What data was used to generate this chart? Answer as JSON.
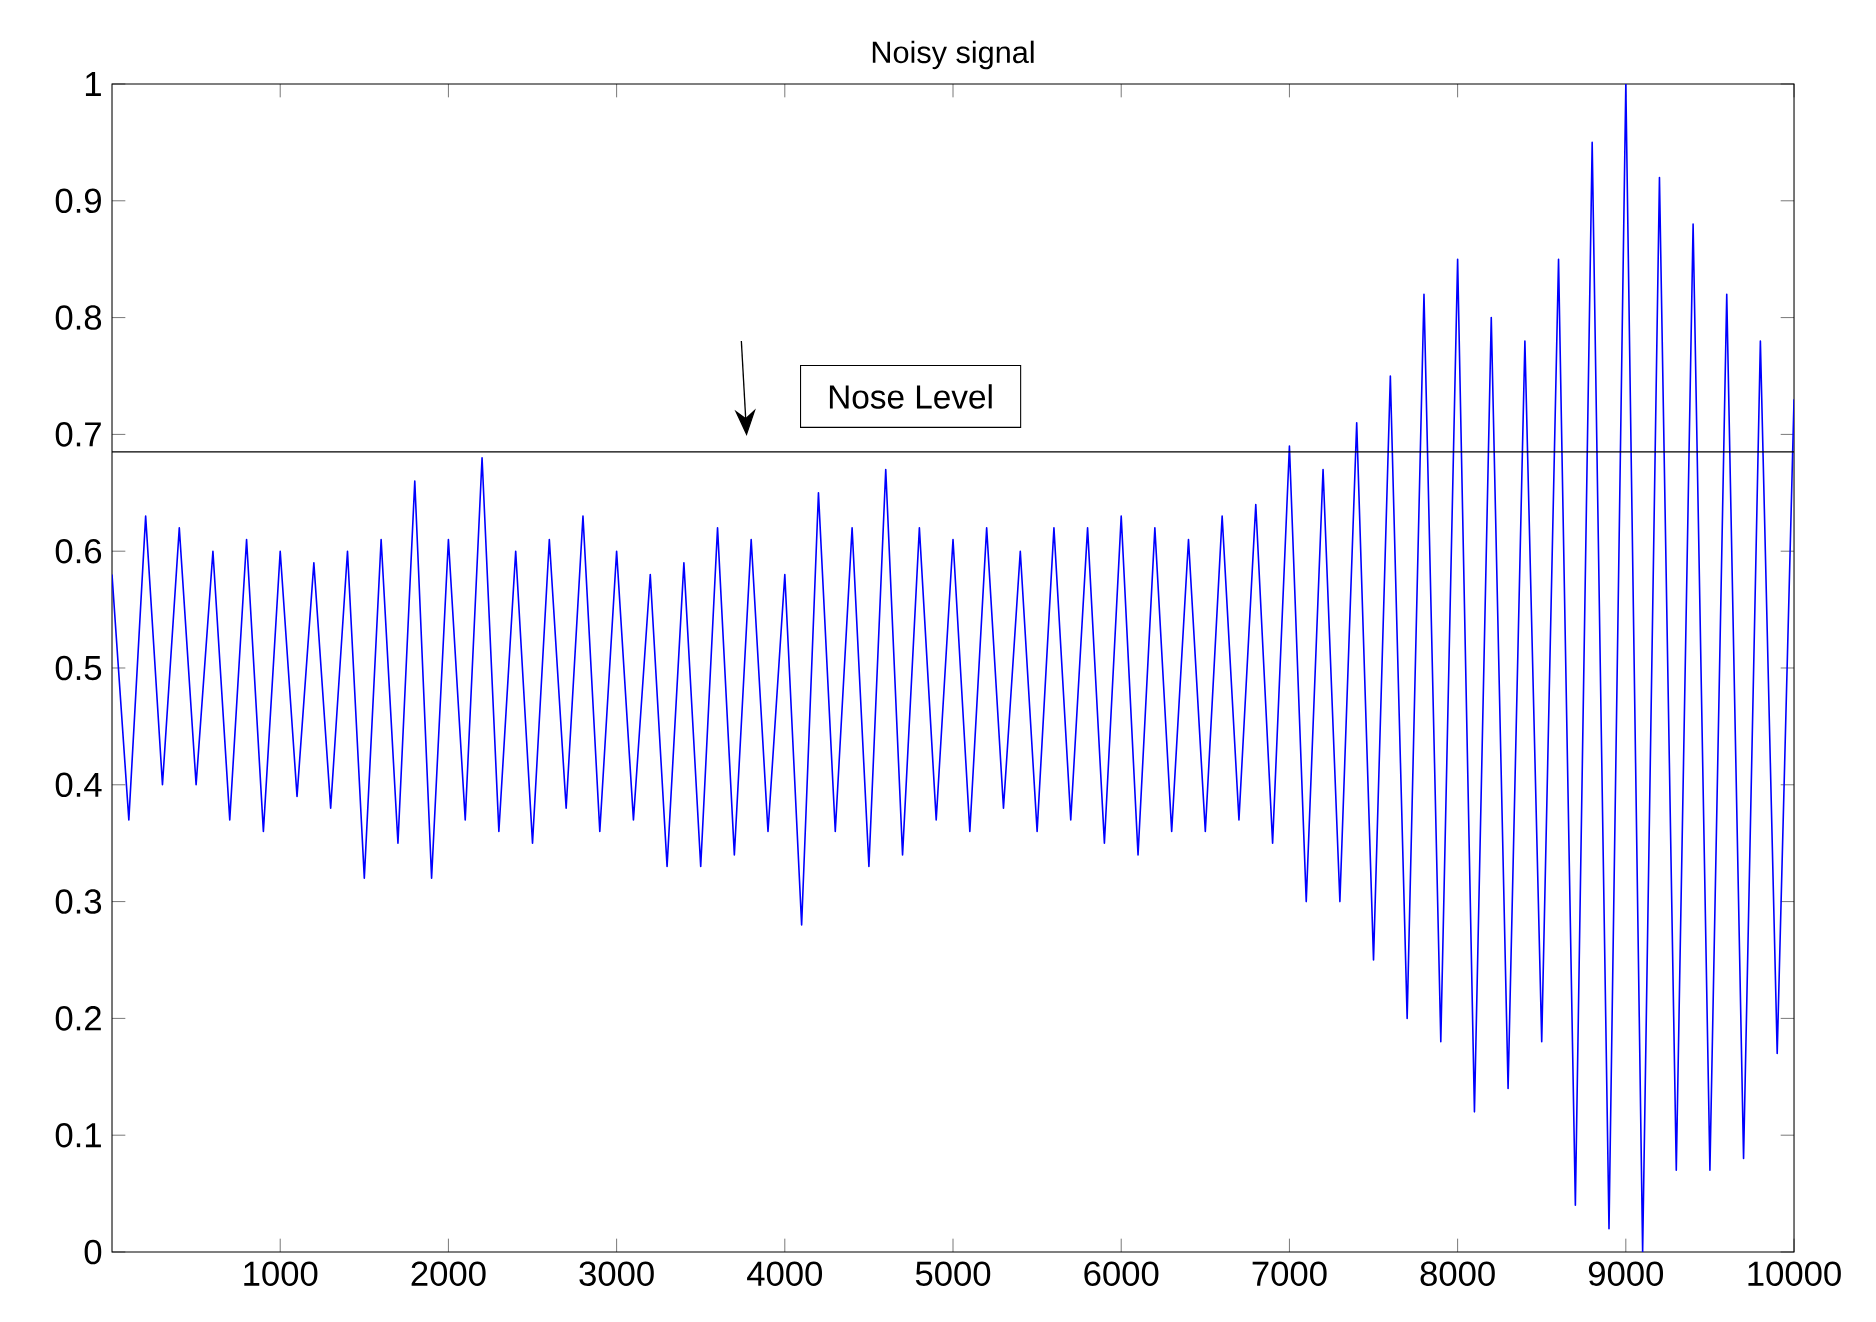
{
  "chart_data": {
    "type": "line",
    "title": "Noisy signal",
    "xlim": [
      0,
      10000
    ],
    "ylim": [
      0,
      1
    ],
    "xticks": [
      1000,
      2000,
      3000,
      4000,
      5000,
      6000,
      7000,
      8000,
      9000,
      10000
    ],
    "yticks": [
      0,
      0.1,
      0.2,
      0.3,
      0.4,
      0.5,
      0.6,
      0.7,
      0.8,
      0.9,
      1
    ],
    "line_style": "solid",
    "ref_lines": [
      {
        "axis": "y",
        "value": 0.685,
        "label": "Nose Level",
        "color": "#000000"
      }
    ],
    "series": [
      {
        "color": "#0000ff",
        "x": [
          0,
          100,
          200,
          300,
          400,
          500,
          600,
          700,
          800,
          900,
          1000,
          1100,
          1200,
          1300,
          1400,
          1500,
          1600,
          1700,
          1800,
          1900,
          2000,
          2100,
          2200,
          2300,
          2400,
          2500,
          2600,
          2700,
          2800,
          2900,
          3000,
          3100,
          3200,
          3300,
          3400,
          3500,
          3600,
          3700,
          3800,
          3900,
          4000,
          4100,
          4200,
          4300,
          4400,
          4500,
          4600,
          4700,
          4800,
          4900,
          5000,
          5100,
          5200,
          5300,
          5400,
          5500,
          5600,
          5700,
          5800,
          5900,
          6000,
          6100,
          6200,
          6300,
          6400,
          6500,
          6600,
          6700,
          6800,
          6900,
          7000,
          7100,
          7200,
          7300,
          7400,
          7500,
          7600,
          7700,
          7800,
          7900,
          8000,
          8100,
          8200,
          8300,
          8400,
          8500,
          8600,
          8700,
          8800,
          8900,
          9000,
          9100,
          9200,
          9300,
          9400,
          9500,
          9600,
          9700,
          9800,
          9900,
          10000
        ],
        "values": [
          0.58,
          0.37,
          0.63,
          0.4,
          0.62,
          0.4,
          0.6,
          0.37,
          0.61,
          0.36,
          0.6,
          0.39,
          0.59,
          0.38,
          0.6,
          0.32,
          0.61,
          0.35,
          0.66,
          0.32,
          0.61,
          0.37,
          0.68,
          0.36,
          0.6,
          0.35,
          0.61,
          0.38,
          0.63,
          0.36,
          0.6,
          0.37,
          0.58,
          0.33,
          0.59,
          0.33,
          0.62,
          0.34,
          0.61,
          0.36,
          0.58,
          0.28,
          0.65,
          0.36,
          0.62,
          0.33,
          0.67,
          0.34,
          0.62,
          0.37,
          0.61,
          0.36,
          0.62,
          0.38,
          0.6,
          0.36,
          0.62,
          0.37,
          0.62,
          0.35,
          0.63,
          0.34,
          0.62,
          0.36,
          0.61,
          0.36,
          0.63,
          0.37,
          0.64,
          0.35,
          0.69,
          0.3,
          0.67,
          0.3,
          0.71,
          0.25,
          0.75,
          0.2,
          0.82,
          0.18,
          0.85,
          0.12,
          0.8,
          0.14,
          0.78,
          0.18,
          0.85,
          0.04,
          0.95,
          0.02,
          1.0,
          0.0,
          0.92,
          0.07,
          0.88,
          0.07,
          0.82,
          0.08,
          0.78,
          0.17,
          0.73
        ]
      }
    ]
  }
}
